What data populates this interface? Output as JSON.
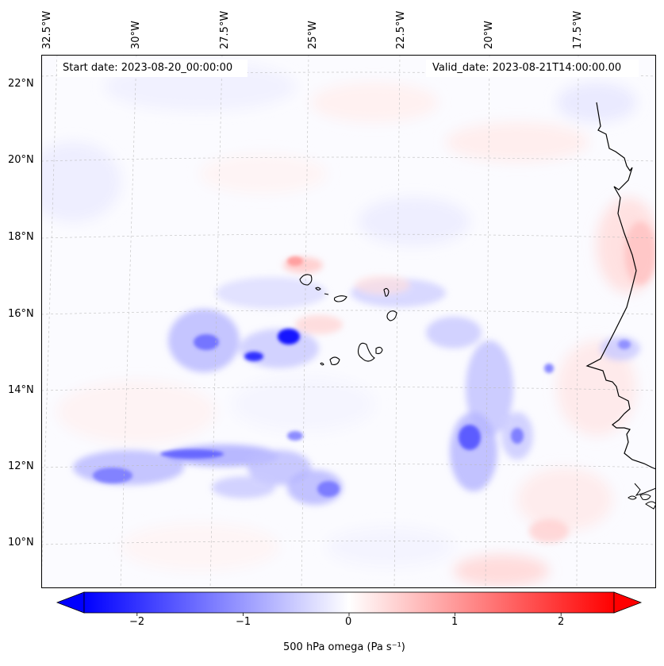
{
  "map": {
    "start_date": "Start date: 2023-08-20_00:00:00",
    "valid_date": "Valid_date: 2023-08-21T14:00:00.00",
    "lon_labels": [
      "32.5°W",
      "30°W",
      "27.5°W",
      "25°W",
      "22.5°W",
      "20°W",
      "17.5°W"
    ],
    "lat_labels": [
      "22°N",
      "20°N",
      "18°N",
      "16°N",
      "14°N",
      "12°N",
      "10°N"
    ],
    "features": [
      "omega-field",
      "coastline",
      "cape-verde-islands",
      "gridlines"
    ]
  },
  "colorbar": {
    "label": "500 hPa omega (Pa s⁻¹)",
    "ticks": [
      "−2",
      "−1",
      "0",
      "1",
      "2"
    ],
    "tick_values": [
      -2,
      -1,
      0,
      1,
      2
    ],
    "range": [
      -2.5,
      2.5
    ],
    "colors": {
      "min": "#0000ff",
      "mid": "#ffffff",
      "max": "#ff0000"
    },
    "extend": "both"
  }
}
